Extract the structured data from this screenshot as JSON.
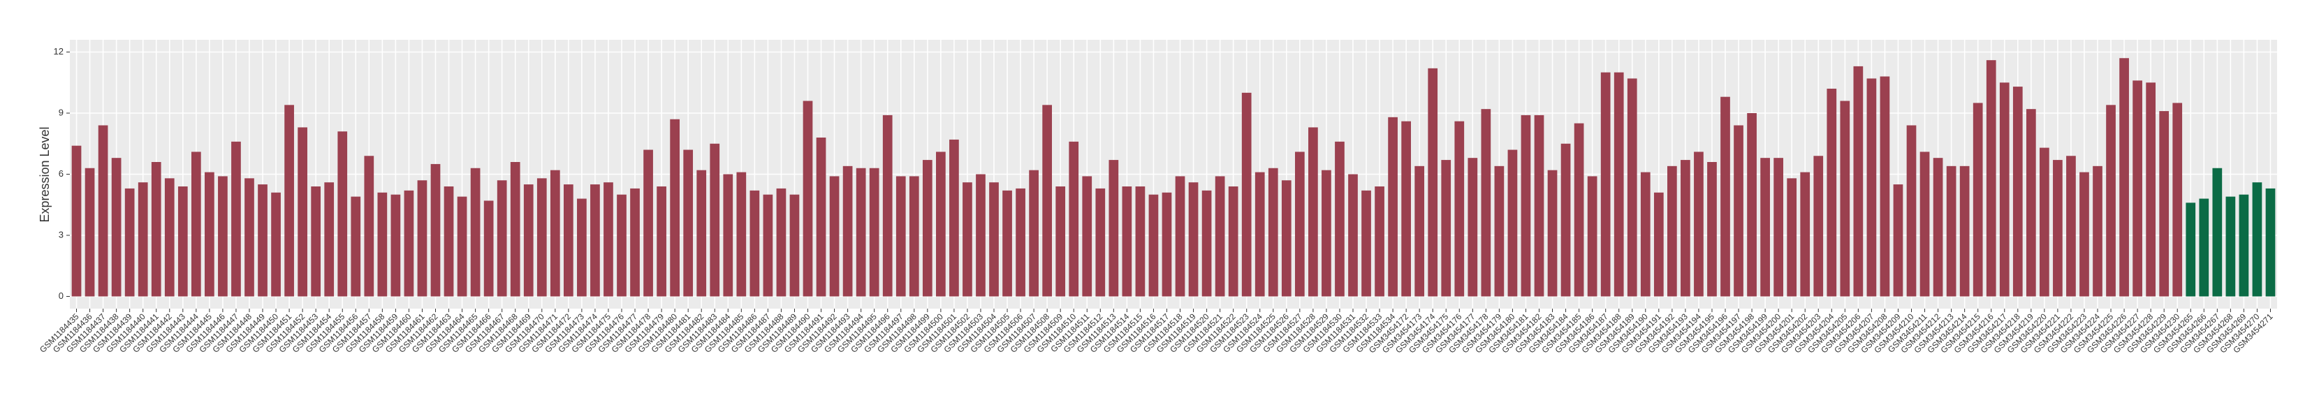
{
  "chart_data": {
    "type": "bar",
    "y_label": "Expression Level",
    "categories": [
      "GSM1184435",
      "GSM1184436",
      "GSM1184437",
      "GSM1184438",
      "GSM1184439",
      "GSM1184440",
      "GSM1184441",
      "GSM1184442",
      "GSM1184443",
      "GSM1184444",
      "GSM1184445",
      "GSM1184446",
      "GSM1184447",
      "GSM1184448",
      "GSM1184449",
      "GSM1184450",
      "GSM1184451",
      "GSM1184452",
      "GSM1184453",
      "GSM1184454",
      "GSM1184455",
      "GSM1184456",
      "GSM1184457",
      "GSM1184458",
      "GSM1184459",
      "GSM1184460",
      "GSM1184461",
      "GSM1184462",
      "GSM1184463",
      "GSM1184464",
      "GSM1184465",
      "GSM1184466",
      "GSM1184467",
      "GSM1184468",
      "GSM1184469",
      "GSM1184470",
      "GSM1184471",
      "GSM1184472",
      "GSM1184473",
      "GSM1184474",
      "GSM1184475",
      "GSM1184476",
      "GSM1184477",
      "GSM1184478",
      "GSM1184479",
      "GSM1184480",
      "GSM1184481",
      "GSM1184482",
      "GSM1184483",
      "GSM1184484",
      "GSM1184485",
      "GSM1184486",
      "GSM1184487",
      "GSM1184488",
      "GSM1184489",
      "GSM1184490",
      "GSM1184491",
      "GSM1184492",
      "GSM1184493",
      "GSM1184494",
      "GSM1184495",
      "GSM1184496",
      "GSM1184497",
      "GSM1184498",
      "GSM1184499",
      "GSM1184500",
      "GSM1184501",
      "GSM1184502",
      "GSM1184503",
      "GSM1184504",
      "GSM1184505",
      "GSM1184506",
      "GSM1184507",
      "GSM1184508",
      "GSM1184509",
      "GSM1184510",
      "GSM1184511",
      "GSM1184512",
      "GSM1184513",
      "GSM1184514",
      "GSM1184515",
      "GSM1184516",
      "GSM1184517",
      "GSM1184518",
      "GSM1184519",
      "GSM1184520",
      "GSM1184521",
      "GSM1184522",
      "GSM1184523",
      "GSM1184524",
      "GSM1184525",
      "GSM1184526",
      "GSM1184527",
      "GSM1184528",
      "GSM1184529",
      "GSM1184530",
      "GSM1184531",
      "GSM1184532",
      "GSM1184533",
      "GSM1184534",
      "GSM3454172",
      "GSM3454173",
      "GSM3454174",
      "GSM3454175",
      "GSM3454176",
      "GSM3454177",
      "GSM3454178",
      "GSM3454179",
      "GSM3454180",
      "GSM3454181",
      "GSM3454182",
      "GSM3454183",
      "GSM3454184",
      "GSM3454185",
      "GSM3454186",
      "GSM3454187",
      "GSM3454188",
      "GSM3454189",
      "GSM3454190",
      "GSM3454191",
      "GSM3454192",
      "GSM3454193",
      "GSM3454194",
      "GSM3454195",
      "GSM3454196",
      "GSM3454197",
      "GSM3454198",
      "GSM3454199",
      "GSM3454200",
      "GSM3454201",
      "GSM3454202",
      "GSM3454203",
      "GSM3454204",
      "GSM3454205",
      "GSM3454206",
      "GSM3454207",
      "GSM3454208",
      "GSM3454209",
      "GSM3454210",
      "GSM3454211",
      "GSM3454212",
      "GSM3454213",
      "GSM3454214",
      "GSM3454215",
      "GSM3454216",
      "GSM3454217",
      "GSM3454218",
      "GSM3454219",
      "GSM3454220",
      "GSM3454221",
      "GSM3454222",
      "GSM3454223",
      "GSM3454224",
      "GSM3454225",
      "GSM3454226",
      "GSM3454227",
      "GSM3454228",
      "GSM3454229",
      "GSM3454230",
      "GSM3454265",
      "GSM3454266",
      "GSM3454267",
      "GSM3454268",
      "GSM3454269",
      "GSM3454270",
      "GSM3454271"
    ],
    "values": [
      7.4,
      6.3,
      8.4,
      6.8,
      5.3,
      5.6,
      6.6,
      5.8,
      5.4,
      7.1,
      6.1,
      5.9,
      7.6,
      5.8,
      5.5,
      5.1,
      9.4,
      8.3,
      5.4,
      5.6,
      8.1,
      4.9,
      6.9,
      5.1,
      5.0,
      5.2,
      5.7,
      6.5,
      5.4,
      4.9,
      6.3,
      4.7,
      5.7,
      6.6,
      5.5,
      5.8,
      6.2,
      5.5,
      4.8,
      5.5,
      5.6,
      5.0,
      5.3,
      7.2,
      5.4,
      8.7,
      7.2,
      6.2,
      7.5,
      6.0,
      6.1,
      5.2,
      5.0,
      5.3,
      5.0,
      9.6,
      7.8,
      5.9,
      6.4,
      6.3,
      6.3,
      8.9,
      5.9,
      5.9,
      6.7,
      7.1,
      7.7,
      5.6,
      6.0,
      5.6,
      5.2,
      5.3,
      6.2,
      9.4,
      5.4,
      7.6,
      5.9,
      5.3,
      6.7,
      5.4,
      5.4,
      5.0,
      5.1,
      5.9,
      5.6,
      5.2,
      5.9,
      5.4,
      10.0,
      6.1,
      6.3,
      5.7,
      7.1,
      8.3,
      6.2,
      7.6,
      6.0,
      5.2,
      5.4,
      8.8,
      8.6,
      6.4,
      11.2,
      6.7,
      8.6,
      6.8,
      9.2,
      6.4,
      7.2,
      8.9,
      8.9,
      6.2,
      7.5,
      8.5,
      5.9,
      11.0,
      11.0,
      10.7,
      6.1,
      5.1,
      6.4,
      6.7,
      7.1,
      6.6,
      9.8,
      8.4,
      9.0,
      6.8,
      6.8,
      5.8,
      6.1,
      6.9,
      10.2,
      9.6,
      11.3,
      10.7,
      10.8,
      5.5,
      8.4,
      7.1,
      6.8,
      6.4,
      6.4,
      9.5,
      11.6,
      10.5,
      10.3,
      9.2,
      7.3,
      6.7,
      6.9,
      6.1,
      6.4,
      9.4,
      11.7,
      10.6,
      10.5,
      9.1,
      9.5,
      4.6,
      4.8,
      6.3,
      4.9,
      5.0,
      5.6,
      5.3
    ],
    "colors": [
      "#9b404f",
      "#9b404f",
      "#9b404f",
      "#9b404f",
      "#9b404f",
      "#9b404f",
      "#9b404f",
      "#9b404f",
      "#9b404f",
      "#9b404f",
      "#9b404f",
      "#9b404f",
      "#9b404f",
      "#9b404f",
      "#9b404f",
      "#9b404f",
      "#9b404f",
      "#9b404f",
      "#9b404f",
      "#9b404f",
      "#9b404f",
      "#9b404f",
      "#9b404f",
      "#9b404f",
      "#9b404f",
      "#9b404f",
      "#9b404f",
      "#9b404f",
      "#9b404f",
      "#9b404f",
      "#9b404f",
      "#9b404f",
      "#9b404f",
      "#9b404f",
      "#9b404f",
      "#9b404f",
      "#9b404f",
      "#9b404f",
      "#9b404f",
      "#9b404f",
      "#9b404f",
      "#9b404f",
      "#9b404f",
      "#9b404f",
      "#9b404f",
      "#9b404f",
      "#9b404f",
      "#9b404f",
      "#9b404f",
      "#9b404f",
      "#9b404f",
      "#9b404f",
      "#9b404f",
      "#9b404f",
      "#9b404f",
      "#9b404f",
      "#9b404f",
      "#9b404f",
      "#9b404f",
      "#9b404f",
      "#9b404f",
      "#9b404f",
      "#9b404f",
      "#9b404f",
      "#9b404f",
      "#9b404f",
      "#9b404f",
      "#9b404f",
      "#9b404f",
      "#9b404f",
      "#9b404f",
      "#9b404f",
      "#9b404f",
      "#9b404f",
      "#9b404f",
      "#9b404f",
      "#9b404f",
      "#9b404f",
      "#9b404f",
      "#9b404f",
      "#9b404f",
      "#9b404f",
      "#9b404f",
      "#9b404f",
      "#9b404f",
      "#9b404f",
      "#9b404f",
      "#9b404f",
      "#9b404f",
      "#9b404f",
      "#9b404f",
      "#9b404f",
      "#9b404f",
      "#9b404f",
      "#9b404f",
      "#9b404f",
      "#9b404f",
      "#9b404f",
      "#9b404f",
      "#9b404f",
      "#9b404f",
      "#9b404f",
      "#9b404f",
      "#9b404f",
      "#9b404f",
      "#9b404f",
      "#9b404f",
      "#9b404f",
      "#9b404f",
      "#9b404f",
      "#9b404f",
      "#9b404f",
      "#9b404f",
      "#9b404f",
      "#9b404f",
      "#9b404f",
      "#9b404f",
      "#9b404f",
      "#9b404f",
      "#9b404f",
      "#9b404f",
      "#9b404f",
      "#9b404f",
      "#9b404f",
      "#9b404f",
      "#9b404f",
      "#9b404f",
      "#9b404f",
      "#9b404f",
      "#9b404f",
      "#9b404f",
      "#9b404f",
      "#9b404f",
      "#9b404f",
      "#9b404f",
      "#9b404f",
      "#9b404f",
      "#9b404f",
      "#9b404f",
      "#9b404f",
      "#9b404f",
      "#9b404f",
      "#9b404f",
      "#9b404f",
      "#9b404f",
      "#9b404f",
      "#9b404f",
      "#9b404f",
      "#9b404f",
      "#9b404f",
      "#9b404f",
      "#9b404f",
      "#9b404f",
      "#9b404f",
      "#9b404f",
      "#9b404f",
      "#9b404f",
      "#9b404f",
      "#9b404f",
      "#0b6b45",
      "#0b6b45",
      "#0b6b45",
      "#0b6b45",
      "#0b6b45",
      "#0b6b45",
      "#0b6b45"
    ],
    "ylim": [
      -0.6,
      12.6
    ],
    "yticks": [
      0,
      3,
      6,
      9,
      12
    ],
    "grid": true
  }
}
